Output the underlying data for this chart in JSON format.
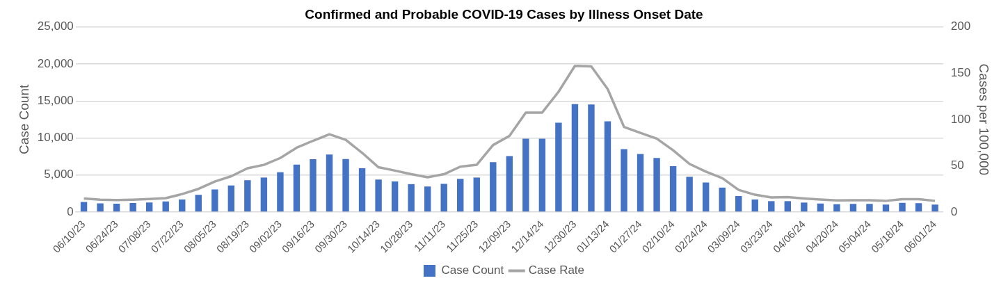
{
  "chart_data": {
    "type": "bar",
    "title": "Confirmed and Probable COVID-19 Cases by Illness Onset Date",
    "ylabel": "Case Count",
    "y2label": "Cases per 100,000",
    "categories": [
      "06/10/23",
      null,
      "06/24/23",
      null,
      "07/08/23",
      null,
      "07/22/23",
      null,
      "08/05/23",
      null,
      "08/19/23",
      null,
      "09/02/23",
      null,
      "09/16/23",
      null,
      "09/30/23",
      null,
      "10/14/23",
      null,
      "10/28/23",
      null,
      "11/11/23",
      null,
      "11/25/23",
      null,
      "12/09/23",
      null,
      "12/14/24",
      null,
      "12/30/23",
      null,
      "01/13/24",
      null,
      "01/27/24",
      null,
      "02/10/24",
      null,
      "02/24/24",
      null,
      "03/09/24",
      null,
      "03/23/24",
      null,
      "04/06/24",
      null,
      "04/20/24",
      null,
      "05/04/24",
      null,
      "05/18/24",
      null,
      "06/01/24"
    ],
    "series": [
      {
        "name": "Case Count",
        "color": "#4472c4",
        "values": [
          1350,
          1170,
          1120,
          1210,
          1300,
          1430,
          1700,
          2330,
          3050,
          3590,
          4300,
          4660,
          5380,
          6410,
          7130,
          7760,
          7170,
          5920,
          4390,
          4130,
          3770,
          3450,
          3810,
          4480,
          4660,
          6730,
          7570,
          9910,
          9910,
          12060,
          14590,
          14540,
          12250,
          8490,
          7840,
          7290,
          6190,
          4770,
          3990,
          3300,
          2160,
          1700,
          1470,
          1470,
          1280,
          1150,
          1060,
          1100,
          1100,
          1010,
          1240,
          1190,
          1010
        ]
      },
      {
        "name": "Case Rate",
        "type": "line",
        "axis": "y2",
        "color": "#a5a5a5",
        "values": [
          14.7,
          13.3,
          12.9,
          13.3,
          14,
          15,
          19.4,
          25,
          33,
          38.7,
          47.3,
          51,
          58.4,
          69.5,
          77,
          84,
          78,
          64,
          48.4,
          44.8,
          40.9,
          37.6,
          40.9,
          49,
          51,
          72.4,
          82.2,
          107.5,
          107.5,
          130,
          158,
          157.4,
          133,
          92,
          85.5,
          79.3,
          66.8,
          52,
          43.7,
          36.7,
          23.9,
          18.7,
          15.8,
          16.1,
          14.7,
          13.6,
          12.5,
          12.8,
          12.8,
          12.1,
          13.9,
          13.9,
          12.1
        ]
      }
    ],
    "ylim": [
      0,
      25000
    ],
    "yticks": [
      {
        "value": 0,
        "label": "0"
      },
      {
        "value": 5000,
        "label": "5,000"
      },
      {
        "value": 10000,
        "label": "10,000"
      },
      {
        "value": 15000,
        "label": "15,000"
      },
      {
        "value": 20000,
        "label": "20,000"
      },
      {
        "value": 25000,
        "label": "25,000"
      }
    ],
    "y2lim": [
      0,
      200
    ],
    "y2ticks": [
      0,
      50,
      100,
      150,
      200
    ],
    "grid": "y",
    "legend": "bottom"
  }
}
